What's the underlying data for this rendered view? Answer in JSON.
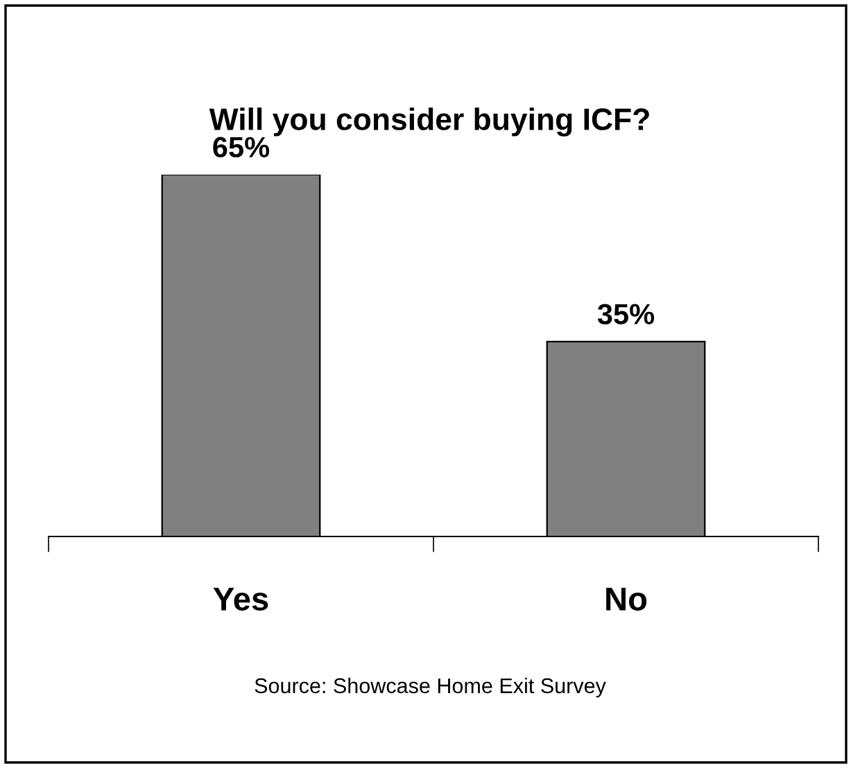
{
  "chart_data": {
    "type": "bar",
    "title": "Will you consider buying ICF?",
    "categories": [
      "Yes",
      "No"
    ],
    "values": [
      65,
      35
    ],
    "value_labels": [
      "65%",
      "35%"
    ],
    "color": "#808080",
    "grid": false,
    "legend": false,
    "tick_labels": "x",
    "annotations": [
      "Source: Showcase Home Exit Survey"
    ]
  }
}
